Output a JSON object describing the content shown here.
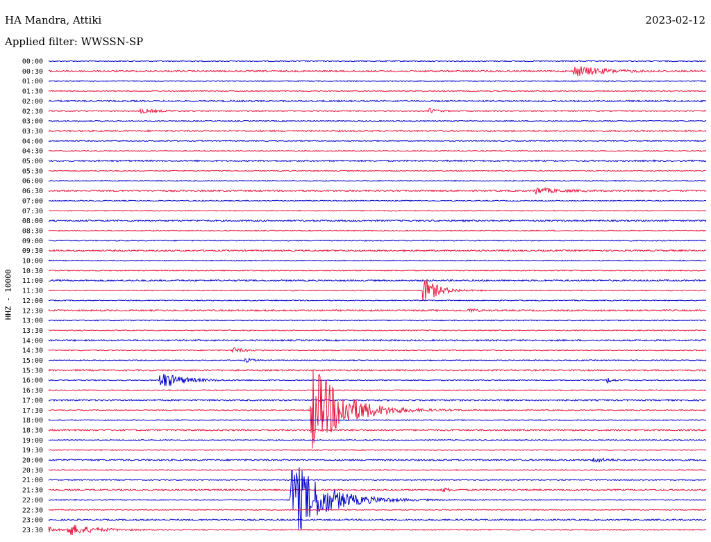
{
  "header": {
    "station": "HA Mandra, Attiki",
    "date": "2023-02-12",
    "filter": "Applied filter: WWSSN-SP"
  },
  "channel_label": "HHZ - 10000",
  "colors": {
    "even_trace": "#0000cc",
    "odd_trace": "#e8143c",
    "text": "#000000"
  },
  "chart_data": {
    "type": "line",
    "row_labels": [
      "00:00",
      "00:30",
      "01:00",
      "01:30",
      "02:00",
      "02:30",
      "03:00",
      "03:30",
      "04:00",
      "04:30",
      "05:00",
      "05:30",
      "06:00",
      "06:30",
      "07:00",
      "07:30",
      "08:00",
      "08:30",
      "09:00",
      "09:30",
      "10:00",
      "10:30",
      "11:00",
      "11:30",
      "12:00",
      "12:30",
      "13:00",
      "13:30",
      "14:00",
      "14:30",
      "15:00",
      "15:30",
      "16:00",
      "16:30",
      "17:00",
      "17:30",
      "18:00",
      "18:30",
      "19:00",
      "19:30",
      "20:00",
      "20:30",
      "21:00",
      "21:30",
      "22:00",
      "22:30",
      "23:00",
      "23:30"
    ],
    "row_minutes": 30,
    "events": [
      {
        "row": 1,
        "t": 0.8,
        "amp": 1.0,
        "dur": 0.04
      },
      {
        "row": 5,
        "t": 0.14,
        "amp": 0.4,
        "dur": 0.025
      },
      {
        "row": 5,
        "t": 0.58,
        "amp": 0.5,
        "dur": 0.01
      },
      {
        "row": 13,
        "t": 0.74,
        "amp": 0.6,
        "dur": 0.03
      },
      {
        "row": 23,
        "t": 0.57,
        "amp": 2.6,
        "dur": 0.02
      },
      {
        "row": 25,
        "t": 0.64,
        "amp": 0.4,
        "dur": 0.008
      },
      {
        "row": 29,
        "t": 0.28,
        "amp": 0.5,
        "dur": 0.015
      },
      {
        "row": 30,
        "t": 0.3,
        "amp": 0.4,
        "dur": 0.01
      },
      {
        "row": 32,
        "t": 0.17,
        "amp": 1.6,
        "dur": 0.03
      },
      {
        "row": 32,
        "t": 0.85,
        "amp": 0.5,
        "dur": 0.008
      },
      {
        "row": 35,
        "t": 0.4,
        "amp": 8.5,
        "dur": 0.045
      },
      {
        "row": 40,
        "t": 0.83,
        "amp": 0.6,
        "dur": 0.012
      },
      {
        "row": 43,
        "t": 0.6,
        "amp": 0.4,
        "dur": 0.01
      },
      {
        "row": 44,
        "t": 0.37,
        "amp": 7.5,
        "dur": 0.045
      },
      {
        "row": 47,
        "t": 0.03,
        "amp": 1.1,
        "dur": 0.035
      },
      {
        "row": 47,
        "t": 0.0,
        "amp": 0.5,
        "dur": 0.01
      }
    ],
    "title": "",
    "xlabel": "",
    "ylabel": "HHZ - 10000"
  }
}
